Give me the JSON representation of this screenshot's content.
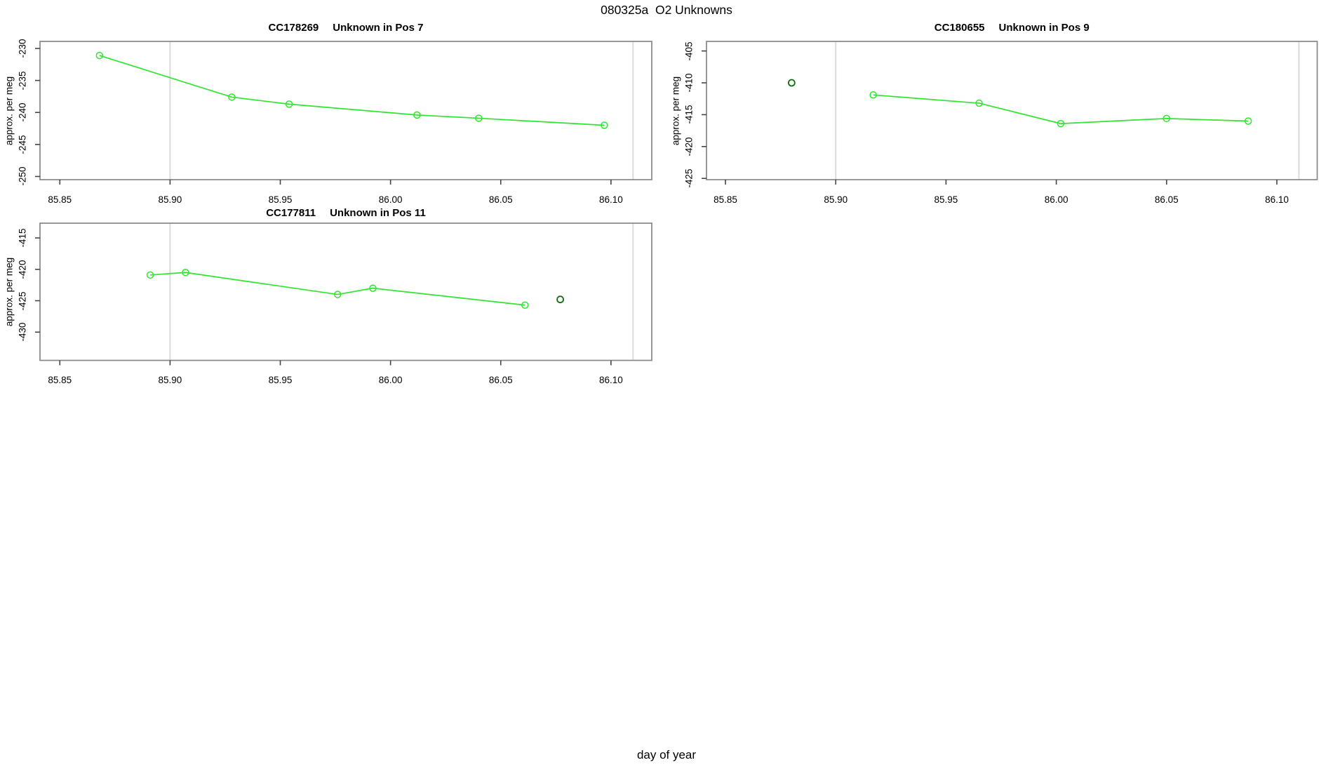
{
  "page": {
    "main_title": "080325a  O2 Unknowns",
    "outer_x_label": "day of year"
  },
  "colors": {
    "series_green": "#2ee62e",
    "isolated_dark_green": "#0f6e0f",
    "box_gray": "#878787",
    "tick_gray": "#454545",
    "vline_gray": "#dbdbdb",
    "text_black": "#000000"
  },
  "chart_data": [
    {
      "type": "line",
      "title_code": "CC178269",
      "title_desc": "Unknown in Pos 7",
      "ylabel": "approx. per meg",
      "x_tick_values": [
        85.85,
        85.9,
        85.95,
        86.0,
        86.05,
        86.1
      ],
      "x_tick_labels": [
        "85.85",
        "85.90",
        "85.95",
        "86.00",
        "86.05",
        "86.10"
      ],
      "y_tick_values": [
        -230,
        -235,
        -240,
        -245,
        -250
      ],
      "y_tick_labels": [
        "-230",
        "-235",
        "-240",
        "-245",
        "-250"
      ],
      "xlim": [
        85.841,
        86.1185
      ],
      "ylim": [
        -250.5,
        -228.9
      ],
      "reference_vlines": [
        85.9,
        86.11
      ],
      "series": {
        "name": "unknown-run",
        "x": [
          85.868,
          85.928,
          85.954,
          86.012,
          86.04,
          86.097
        ],
        "y": [
          -231.1,
          -237.6,
          -238.7,
          -240.4,
          -240.9,
          -242.0
        ]
      },
      "isolated_points": []
    },
    {
      "type": "line",
      "title_code": "CC180655",
      "title_desc": "Unknown in Pos 9",
      "ylabel": "approx. per meg",
      "x_tick_values": [
        85.85,
        85.9,
        85.95,
        86.0,
        86.05,
        86.1
      ],
      "x_tick_labels": [
        "85.85",
        "85.90",
        "85.95",
        "86.00",
        "86.05",
        "86.10"
      ],
      "y_tick_values": [
        -405,
        -410,
        -415,
        -420,
        -425
      ],
      "y_tick_labels": [
        "-405",
        "-410",
        "-415",
        "-420",
        "-425"
      ],
      "xlim": [
        85.8414,
        86.1183
      ],
      "ylim": [
        -425.2,
        -403.5
      ],
      "reference_vlines": [
        85.9,
        86.11
      ],
      "series": {
        "name": "unknown-run",
        "x": [
          85.917,
          85.965,
          86.002,
          86.05,
          86.087
        ],
        "y": [
          -411.9,
          -413.2,
          -416.4,
          -415.6,
          -416.0
        ]
      },
      "isolated_points": [
        {
          "x": 85.88,
          "y": -410.0
        }
      ]
    },
    {
      "type": "line",
      "title_code": "CC177811",
      "title_desc": "Unknown in Pos 11",
      "ylabel": "approx. per meg",
      "x_tick_values": [
        85.85,
        85.9,
        85.95,
        86.0,
        86.05,
        86.1
      ],
      "x_tick_labels": [
        "85.85",
        "85.90",
        "85.95",
        "86.00",
        "86.05",
        "86.10"
      ],
      "y_tick_values": [
        -415,
        -420,
        -425,
        -430
      ],
      "y_tick_labels": [
        "-415",
        "-420",
        "-425",
        "-430"
      ],
      "xlim": [
        85.841,
        86.1185
      ],
      "ylim": [
        -434.5,
        -412.65
      ],
      "reference_vlines": [
        85.9,
        86.11
      ],
      "series": {
        "name": "unknown-run",
        "x": [
          85.891,
          85.907,
          85.976,
          85.992,
          86.061
        ],
        "y": [
          -420.9,
          -420.5,
          -424.0,
          -423.0,
          -425.7
        ]
      },
      "isolated_points": [
        {
          "x": 86.077,
          "y": -424.8
        }
      ]
    }
  ]
}
